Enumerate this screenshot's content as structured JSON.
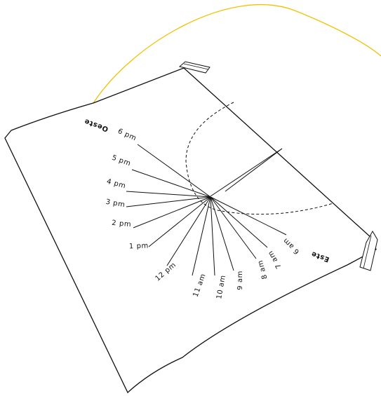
{
  "labels": {
    "west": "Oeste",
    "east": "Este"
  },
  "hours": [
    "6 pm",
    "5 pm",
    "4 pm",
    "3 pm",
    "2 pm",
    "1 pm",
    "12 pm",
    "11 am",
    "10 am",
    "9 am",
    "8 am",
    "7 am",
    "6 am"
  ],
  "colors": {
    "sun_path": "#f2c200",
    "ink": "#111111",
    "paper": "#ffffff"
  }
}
